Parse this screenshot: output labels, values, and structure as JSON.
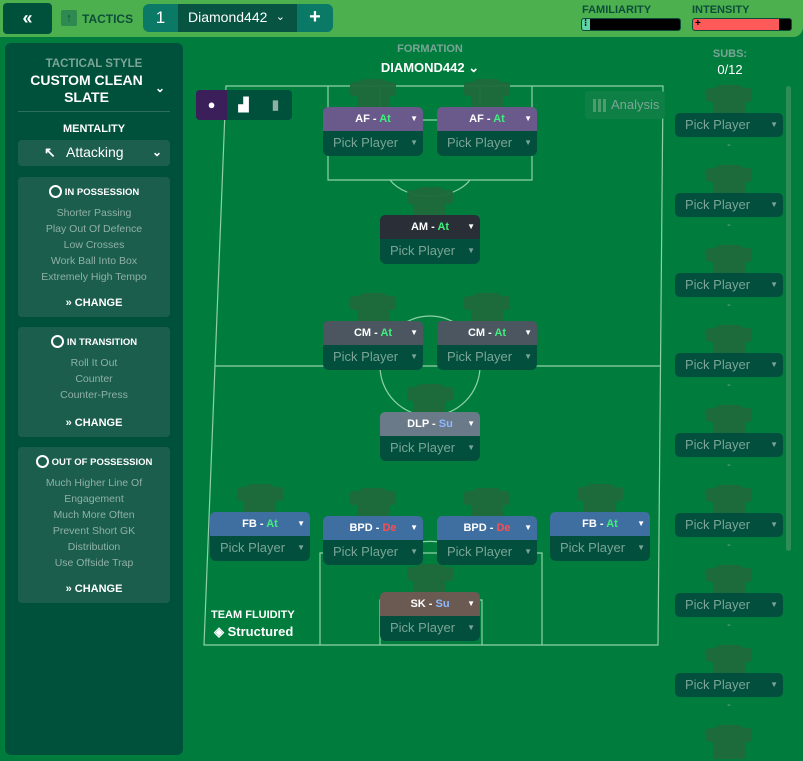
{
  "topbar": {
    "back_icon": "double-chevron-left-icon",
    "section": "TACTICS",
    "tab_number": "1",
    "tactic_name": "Diamond442",
    "add_label": "+",
    "familiarity_label": "FAMILIARITY",
    "familiarity_fill_pct": 8,
    "intensity_label": "INTENSITY",
    "intensity_fill_pct": 88,
    "colors": {
      "familiarity": "#5fd3a8",
      "intensity": "#ff5a5a"
    }
  },
  "sidebar": {
    "tactical_style_label": "TACTICAL STYLE",
    "tactical_style_value": "CUSTOM CLEAN SLATE",
    "mentality_label": "MENTALITY",
    "mentality_value": "Attacking",
    "cards": [
      {
        "title": "IN POSSESSION",
        "items": [
          "Shorter Passing",
          "Play Out Of Defence",
          "Low Crosses",
          "Work Ball Into Box",
          "Extremely High Tempo"
        ],
        "change": "CHANGE"
      },
      {
        "title": "IN TRANSITION",
        "items": [
          "Roll It Out",
          "Counter",
          "Counter-Press"
        ],
        "change": "CHANGE"
      },
      {
        "title": "OUT OF POSSESSION",
        "items": [
          "Much Higher Line Of Engagement",
          "Much More Often",
          "Prevent Short GK Distribution",
          "Use Offside Trap"
        ],
        "change": "CHANGE"
      }
    ]
  },
  "formation": {
    "label": "FORMATION",
    "value": "DIAMOND442",
    "analysis": "Analysis",
    "team_fluidity_label": "TEAM FLUIDITY",
    "team_fluidity_value": "Structured"
  },
  "positions": [
    {
      "role": "AF",
      "duty": "At",
      "pick": "Pick Player",
      "color": "#6a5a8c",
      "duty_color": "#3df07a"
    },
    {
      "role": "AF",
      "duty": "At",
      "pick": "Pick Player",
      "color": "#6a5a8c",
      "duty_color": "#3df07a"
    },
    {
      "role": "AM",
      "duty": "At",
      "pick": "Pick Player",
      "color": "#2a2e36",
      "duty_color": "#3df07a"
    },
    {
      "role": "CM",
      "duty": "At",
      "pick": "Pick Player",
      "color": "#4b5660",
      "duty_color": "#3df07a"
    },
    {
      "role": "CM",
      "duty": "At",
      "pick": "Pick Player",
      "color": "#4b5660",
      "duty_color": "#3df07a"
    },
    {
      "role": "DLP",
      "duty": "Su",
      "pick": "Pick Player",
      "color": "#6b7a88",
      "duty_color": "#8fb8ff"
    },
    {
      "role": "FB",
      "duty": "At",
      "pick": "Pick Player",
      "color": "#3f6fa0",
      "duty_color": "#3df07a"
    },
    {
      "role": "BPD",
      "duty": "De",
      "pick": "Pick Player",
      "color": "#3f6fa0",
      "duty_color": "#ff4d4d"
    },
    {
      "role": "BPD",
      "duty": "De",
      "pick": "Pick Player",
      "color": "#3f6fa0",
      "duty_color": "#ff4d4d"
    },
    {
      "role": "FB",
      "duty": "At",
      "pick": "Pick Player",
      "color": "#3f6fa0",
      "duty_color": "#3df07a"
    },
    {
      "role": "SK",
      "duty": "Su",
      "pick": "Pick Player",
      "color": "#6a5a52",
      "duty_color": "#8fb8ff"
    }
  ],
  "subs": {
    "label": "SUBS:",
    "count": "0/12",
    "slots": [
      {
        "pick": "Pick Player",
        "value": "-"
      },
      {
        "pick": "Pick Player",
        "value": "-"
      },
      {
        "pick": "Pick Player",
        "value": "-"
      },
      {
        "pick": "Pick Player",
        "value": "-"
      },
      {
        "pick": "Pick Player",
        "value": "-"
      },
      {
        "pick": "Pick Player",
        "value": "-"
      },
      {
        "pick": "Pick Player",
        "value": "-"
      },
      {
        "pick": "Pick Player",
        "value": "-"
      }
    ]
  }
}
